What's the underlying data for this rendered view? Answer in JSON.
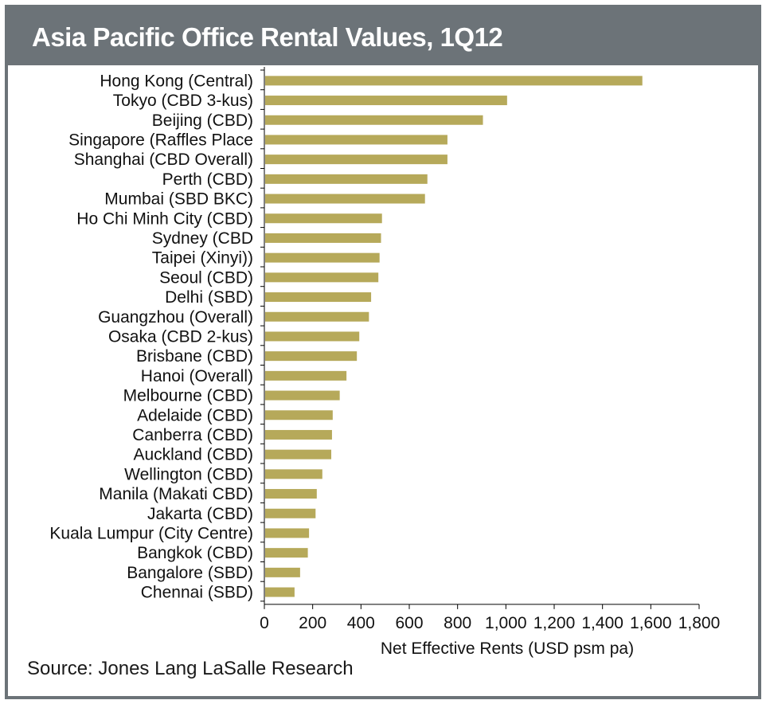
{
  "header": {
    "title": "Asia Pacific Office Rental Values, 1Q12"
  },
  "footer": {
    "source": "Source: Jones Lang LaSalle Research"
  },
  "colors": {
    "bar": "#b6a95a",
    "header_bg": "#6c7378",
    "axis": "#000000"
  },
  "chart_data": {
    "type": "bar",
    "orientation": "horizontal",
    "title": "Asia Pacific Office Rental Values, 1Q12",
    "xlabel": "Net Effective Rents (USD psm pa)",
    "ylabel": "",
    "xlim": [
      0,
      1800
    ],
    "xticks": [
      0,
      200,
      400,
      600,
      800,
      1000,
      1200,
      1400,
      1600,
      1800
    ],
    "xtick_labels": [
      "0",
      "200",
      "400",
      "600",
      "800",
      "1,000",
      "1,200",
      "1,400",
      "1,600",
      "1,800"
    ],
    "grid": false,
    "legend": "none",
    "categories": [
      "Hong Kong (Central)",
      "Tokyo (CBD 3-kus)",
      "Beijing (CBD)",
      "Singapore (Raffles Place",
      "Shanghai (CBD Overall)",
      "Perth (CBD)",
      "Mumbai (SBD BKC)",
      "Ho Chi Minh City (CBD)",
      "Sydney (CBD",
      "Taipei (Xinyi))",
      "Seoul (CBD)",
      "Delhi (SBD)",
      "Guangzhou (Overall)",
      "Osaka (CBD 2-kus)",
      "Brisbane (CBD)",
      "Hanoi (Overall)",
      "Melbourne (CBD)",
      "Adelaide (CBD)",
      "Canberra (CBD)",
      "Auckland (CBD)",
      "Wellington (CBD)",
      "Manila (Makati CBD)",
      "Jakarta (CBD)",
      "Kuala Lumpur (City Centre)",
      "Bangkok (CBD)",
      "Bangalore (SBD)",
      "Chennai (SBD)"
    ],
    "values": [
      1565,
      1005,
      905,
      758,
      758,
      675,
      665,
      487,
      483,
      477,
      472,
      442,
      433,
      393,
      383,
      340,
      312,
      283,
      280,
      277,
      240,
      217,
      212,
      185,
      180,
      148,
      125
    ]
  }
}
